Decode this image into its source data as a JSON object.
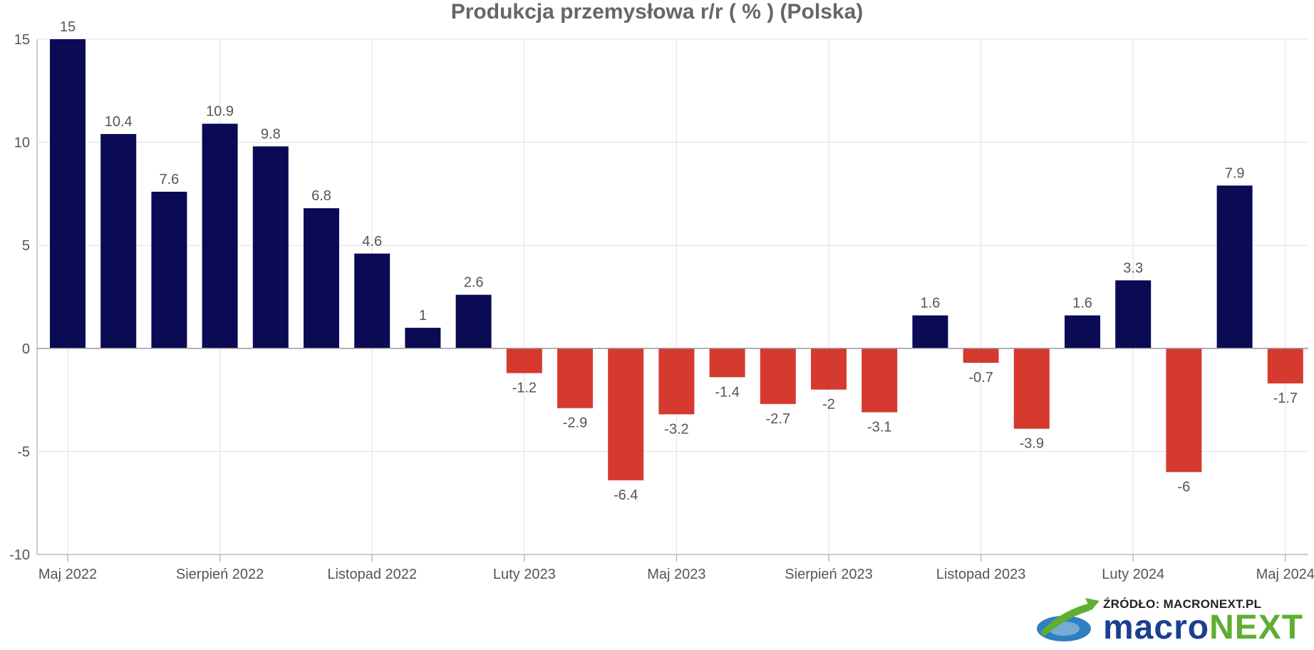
{
  "chart_data": {
    "type": "bar",
    "title": "Produkcja przemysłowa r/r ( % ) (Polska)",
    "xlabel": "",
    "ylabel": "",
    "ylim": [
      -10,
      15
    ],
    "yticks": [
      15,
      10,
      5,
      0,
      -5,
      -10
    ],
    "x_tick_labels": [
      "Maj 2022",
      "Sierpień 2022",
      "Listopad 2022",
      "Luty 2023",
      "Maj 2023",
      "Sierpień 2023",
      "Listopad 2023",
      "Luty 2024",
      "Maj 2024"
    ],
    "categories": [
      "2022-05",
      "2022-06",
      "2022-07",
      "2022-08",
      "2022-09",
      "2022-10",
      "2022-11",
      "2022-12",
      "2023-01",
      "2023-02",
      "2023-03",
      "2023-04",
      "2023-05",
      "2023-06",
      "2023-07",
      "2023-08",
      "2023-09",
      "2023-10",
      "2023-11",
      "2023-12",
      "2024-01",
      "2024-02",
      "2024-03",
      "2024-04",
      "2024-05"
    ],
    "values": [
      15,
      10.4,
      7.6,
      10.9,
      9.8,
      6.8,
      4.6,
      1,
      2.6,
      -1.2,
      -2.9,
      -6.4,
      -3.2,
      -1.4,
      -2.7,
      -2,
      -3.1,
      1.6,
      -0.7,
      -3.9,
      1.6,
      3.3,
      -6,
      7.9,
      -1.7
    ],
    "colors": {
      "positive": "#0a0a55",
      "negative": "#d63a2f"
    },
    "grid": true
  },
  "source": {
    "label": "ŹRÓDŁO: MACRONEXT.PL",
    "brand_part1": "macro",
    "brand_part2": "NEXT"
  }
}
